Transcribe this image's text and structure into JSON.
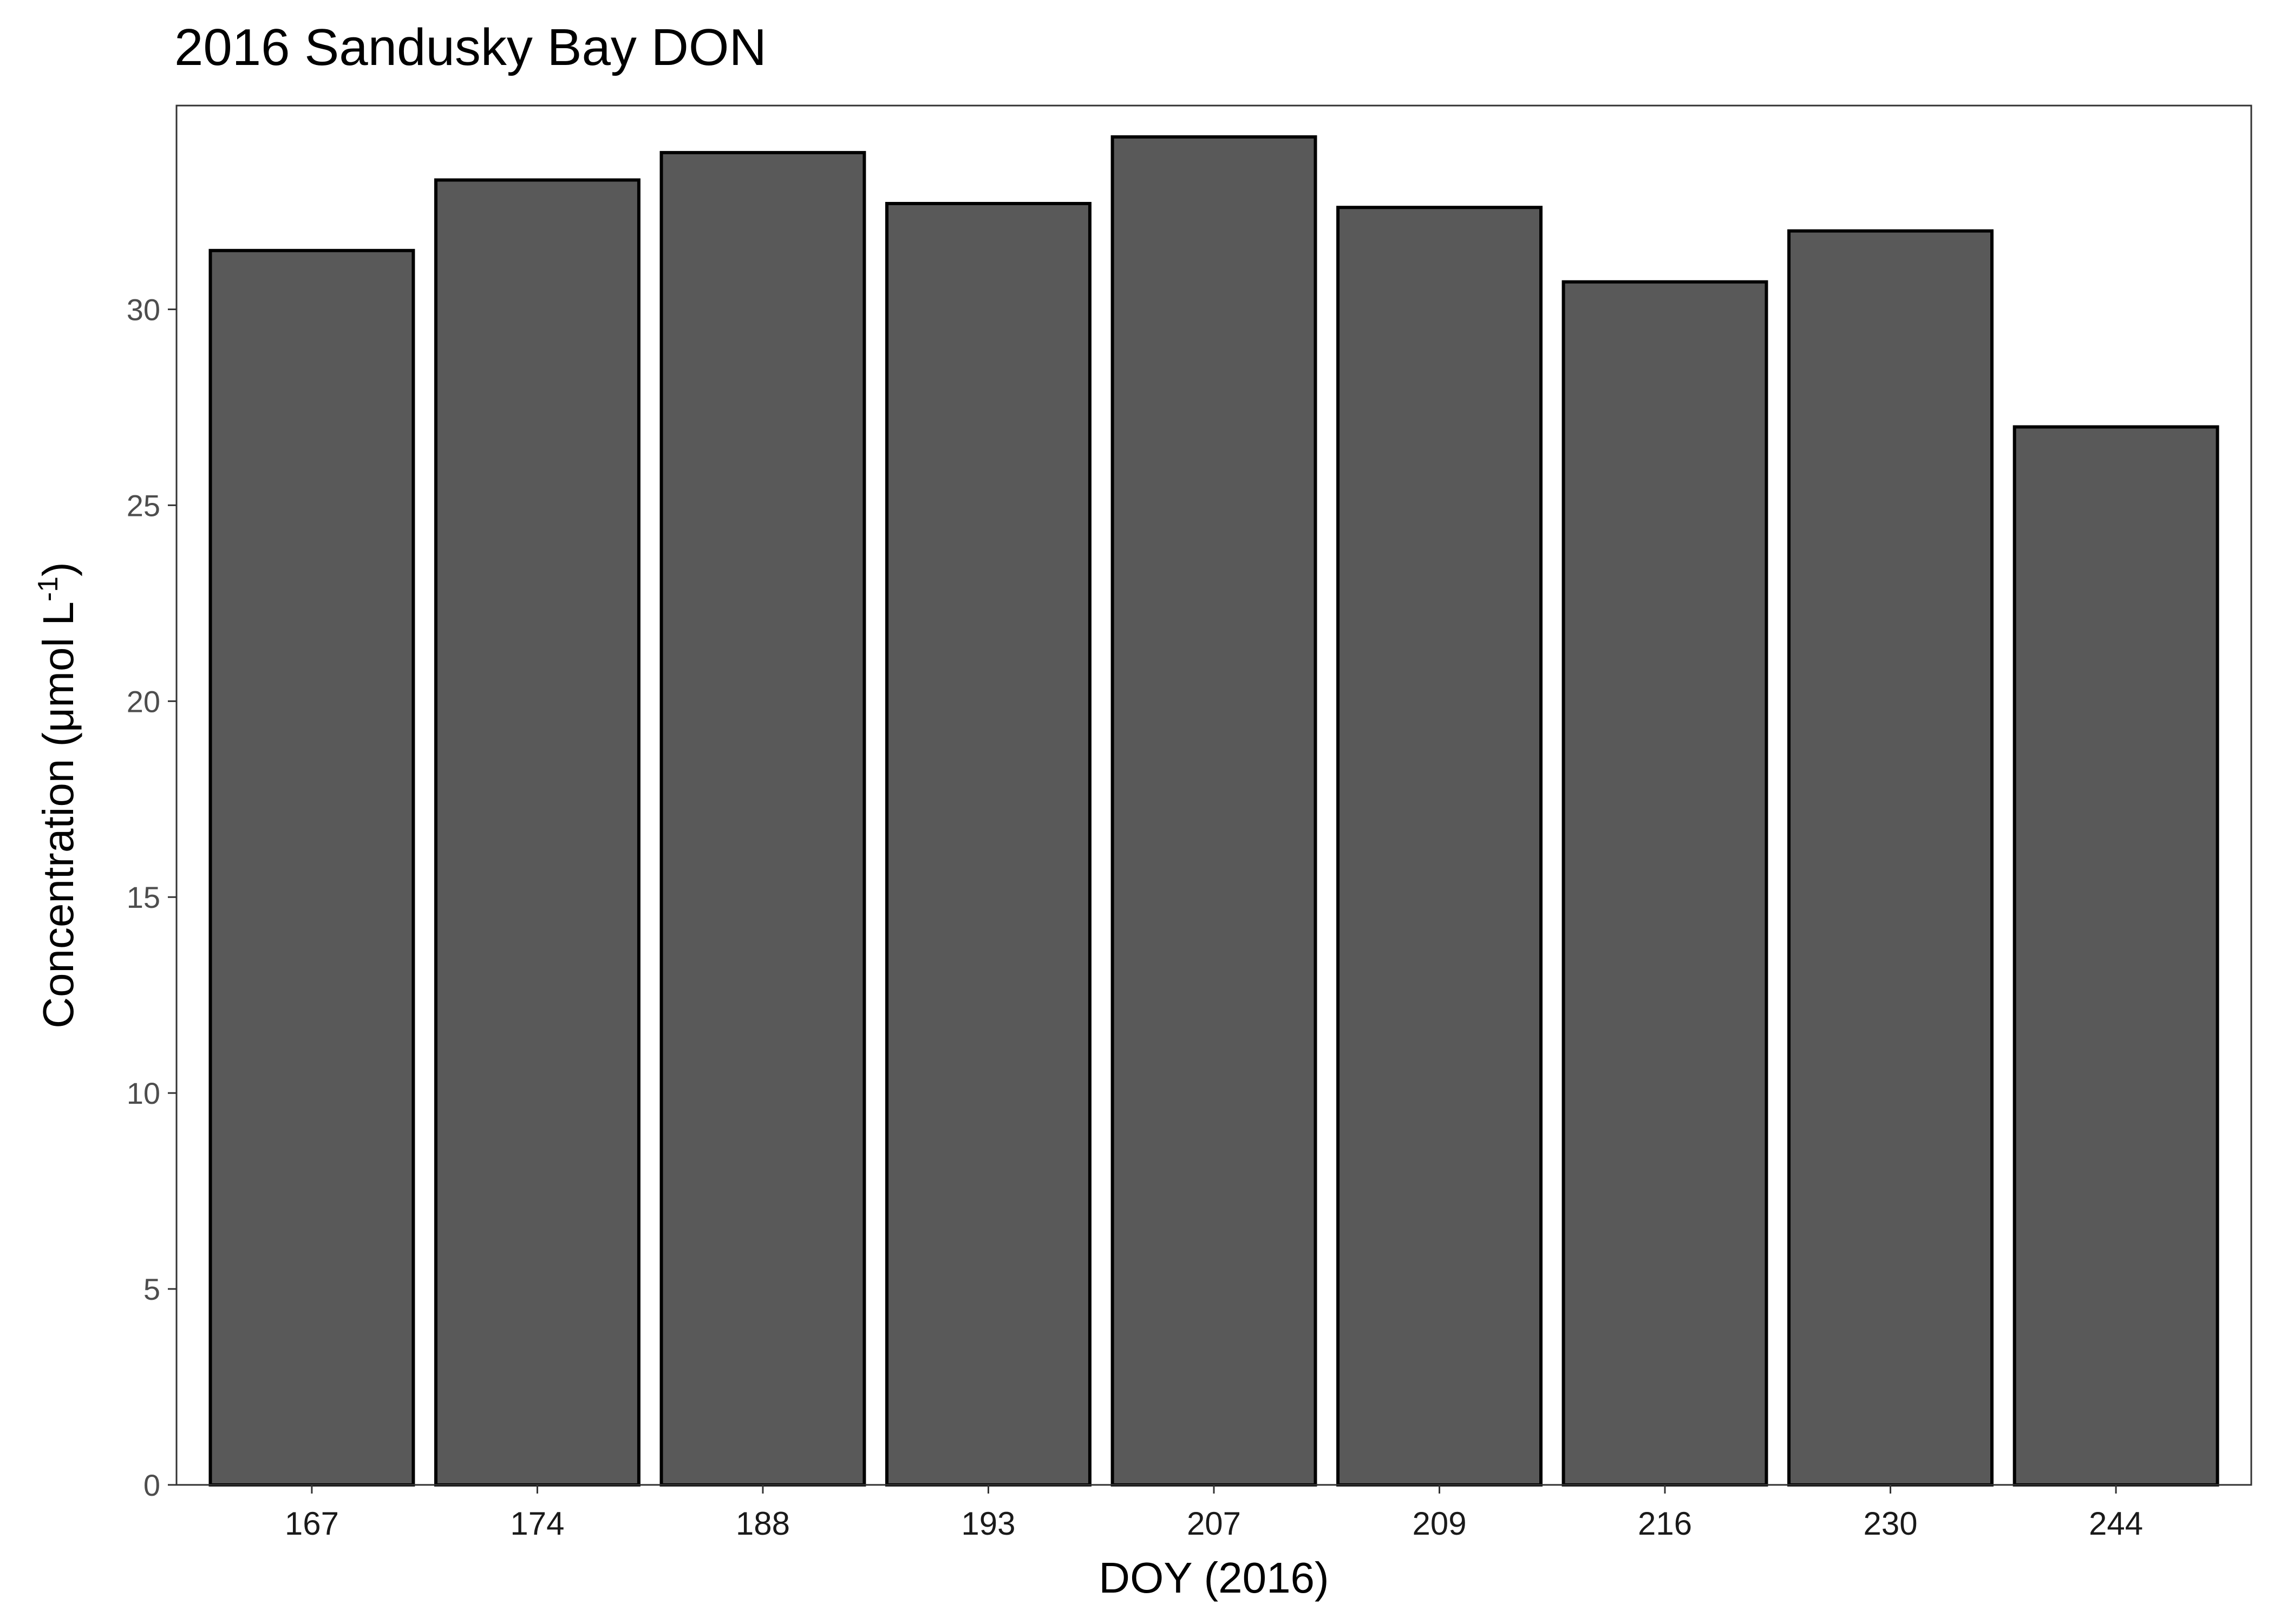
{
  "chart_data": {
    "type": "bar",
    "title": "2016 Sandusky Bay DON",
    "xlabel": "DOY (2016)",
    "ylabel": "Concentration (μmol L",
    "ylabel_superscript": "-1",
    "ylabel_suffix": ")",
    "categories": [
      "167",
      "174",
      "188",
      "193",
      "207",
      "209",
      "216",
      "230",
      "244"
    ],
    "values": [
      31.5,
      33.3,
      34.0,
      32.7,
      34.4,
      32.6,
      30.7,
      32.0,
      27.0
    ],
    "ylim": [
      0,
      35.2
    ],
    "yticks": [
      0,
      5,
      10,
      15,
      20,
      25,
      30
    ],
    "grid": false,
    "bar_fill": "#595959",
    "bar_stroke": "#000000"
  }
}
